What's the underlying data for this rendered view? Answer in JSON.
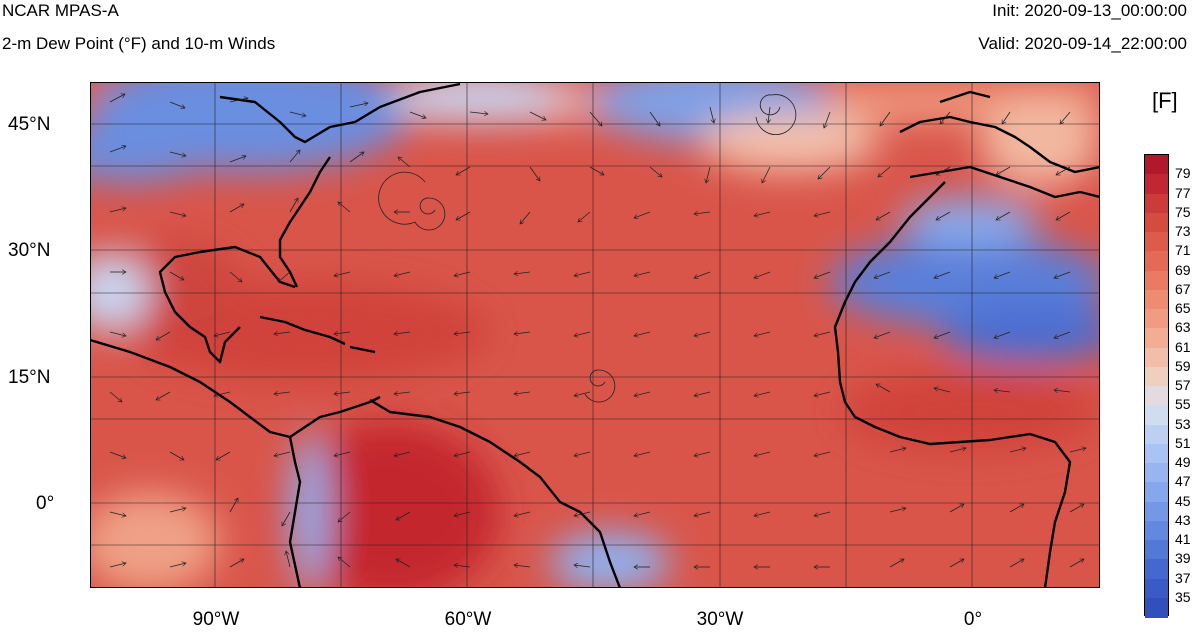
{
  "header": {
    "title": "NCAR MPAS-A",
    "subtitle": "2-m Dew Point (°F) and 10-m Winds",
    "init": "Init: 2020-09-13_00:00:00",
    "valid": "Valid: 2020-09-14_22:00:00"
  },
  "colorbar": {
    "unit": "[F]",
    "labels": [
      "79",
      "77",
      "75",
      "73",
      "71",
      "69",
      "67",
      "65",
      "63",
      "61",
      "59",
      "57",
      "55",
      "53",
      "51",
      "49",
      "47",
      "45",
      "43",
      "41",
      "39",
      "37",
      "35"
    ],
    "colors": [
      "#b2182b",
      "#c02732",
      "#cc3a3a",
      "#d64b40",
      "#de5b4b",
      "#e46a55",
      "#ea7a62",
      "#ee8b71",
      "#f19c82",
      "#f3ad95",
      "#f3bea9",
      "#efcfbe",
      "#e4dbe2",
      "#d0dcf0",
      "#bdd0f4",
      "#aac3f5",
      "#98b5f2",
      "#86a6ee",
      "#7497e8",
      "#6388e0",
      "#5379d8",
      "#4468cf",
      "#3a5bc6",
      "#314fbd"
    ]
  },
  "axes": {
    "lat_labels": [
      "45°N",
      "30°N",
      "15°N",
      "0°"
    ],
    "lon_labels": [
      "90°W",
      "60°W",
      "30°W",
      "0°"
    ]
  },
  "map": {
    "lon_range": [
      -105,
      15
    ],
    "lat_range": [
      -10,
      50
    ],
    "gridlines": true,
    "colors": {
      "warm": "#d9554a",
      "hot": "#c4262e",
      "mild": "#ef9a80",
      "cold": "#5a7fd9",
      "cool": "#b5c7f0",
      "coast": "#000000"
    }
  }
}
